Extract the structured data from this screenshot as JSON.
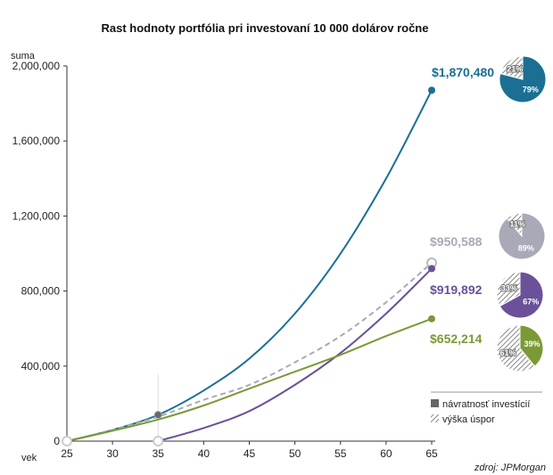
{
  "chart_data": {
    "type": "line",
    "title": "Rast hodnoty portfólia pri investovaní 10 000 dolárov ročne",
    "ylabel": "suma",
    "xlabel": "vek",
    "xlim": [
      25,
      65
    ],
    "ylim": [
      0,
      2000000
    ],
    "x_ticks": [
      25,
      30,
      35,
      40,
      45,
      50,
      55,
      60,
      65
    ],
    "y_ticks": [
      0,
      400000,
      800000,
      1200000,
      1600000,
      2000000
    ],
    "y_tick_labels": [
      "0",
      "400,000",
      "800,000",
      "1,200,000",
      "1,600,000",
      "2,000,000"
    ],
    "series": [
      {
        "key": "teal",
        "color": "#1a6f93",
        "dash": false,
        "x": [
          25,
          30,
          35,
          40,
          45,
          50,
          55,
          60,
          65
        ],
        "y": [
          0,
          60000,
          140000,
          270000,
          440000,
          680000,
          1000000,
          1400000,
          1870480
        ],
        "value_label": "$1,870,480",
        "pie": {
          "returns_pct": "79%",
          "savings_pct": "21%",
          "returns": 79,
          "savings": 21
        }
      },
      {
        "key": "gray",
        "color": "#a9a9b8",
        "dash": true,
        "x": [
          25,
          30,
          35,
          40,
          45,
          50,
          55,
          60,
          65
        ],
        "y": [
          0,
          60000,
          130000,
          220000,
          300000,
          420000,
          560000,
          740000,
          950588
        ],
        "value_label": "$950,588",
        "pie": {
          "returns_pct": "89%",
          "savings_pct": "11%",
          "returns": 89,
          "savings": 11
        }
      },
      {
        "key": "purple",
        "color": "#6a5199",
        "dash": false,
        "x": [
          35,
          40,
          45,
          50,
          55,
          60,
          65
        ],
        "y": [
          0,
          70000,
          160000,
          300000,
          470000,
          680000,
          919892
        ],
        "value_label": "$919,892",
        "pie": {
          "returns_pct": "67%",
          "savings_pct": "33%",
          "returns": 67,
          "savings": 33
        }
      },
      {
        "key": "green",
        "color": "#7a9a35",
        "dash": false,
        "x": [
          25,
          30,
          35,
          40,
          45,
          50,
          55,
          60,
          65
        ],
        "y": [
          0,
          55000,
          115000,
          190000,
          280000,
          370000,
          460000,
          560000,
          652214
        ],
        "value_label": "$652,214",
        "pie": {
          "returns_pct": "39%",
          "savings_pct": "61%",
          "returns": 39,
          "savings": 61
        }
      }
    ],
    "legend": {
      "placement": "bottom-right",
      "returns_label": "návratnosť investícií",
      "savings_label": "výška úspor"
    },
    "source": "zdroj: JPMorgan"
  }
}
